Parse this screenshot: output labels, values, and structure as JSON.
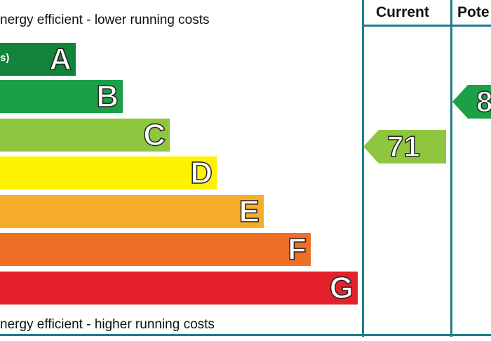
{
  "top_text": "nergy efficient - lower running costs",
  "bottom_text": "nergy efficient - higher running costs",
  "bands": [
    {
      "letter": "A",
      "label": "s)",
      "color": "#12833b",
      "level": 1
    },
    {
      "letter": "B",
      "label": "",
      "color": "#1ba046",
      "level": 2
    },
    {
      "letter": "C",
      "label": "",
      "color": "#8ec73f",
      "level": 3
    },
    {
      "letter": "D",
      "label": "",
      "color": "#fff200",
      "level": 4
    },
    {
      "letter": "E",
      "label": "",
      "color": "#f6ae2a",
      "level": 5
    },
    {
      "letter": "F",
      "label": "",
      "color": "#ef6f27",
      "level": 6
    },
    {
      "letter": "G",
      "label": "",
      "color": "#e4202a",
      "level": 7
    }
  ],
  "columns": {
    "current_label": "Current",
    "potential_label": "Pote"
  },
  "current": {
    "value": "71",
    "band": "C",
    "color": "#8ec73f"
  },
  "potential": {
    "value": "8",
    "band": "B",
    "color": "#1ba046"
  }
}
